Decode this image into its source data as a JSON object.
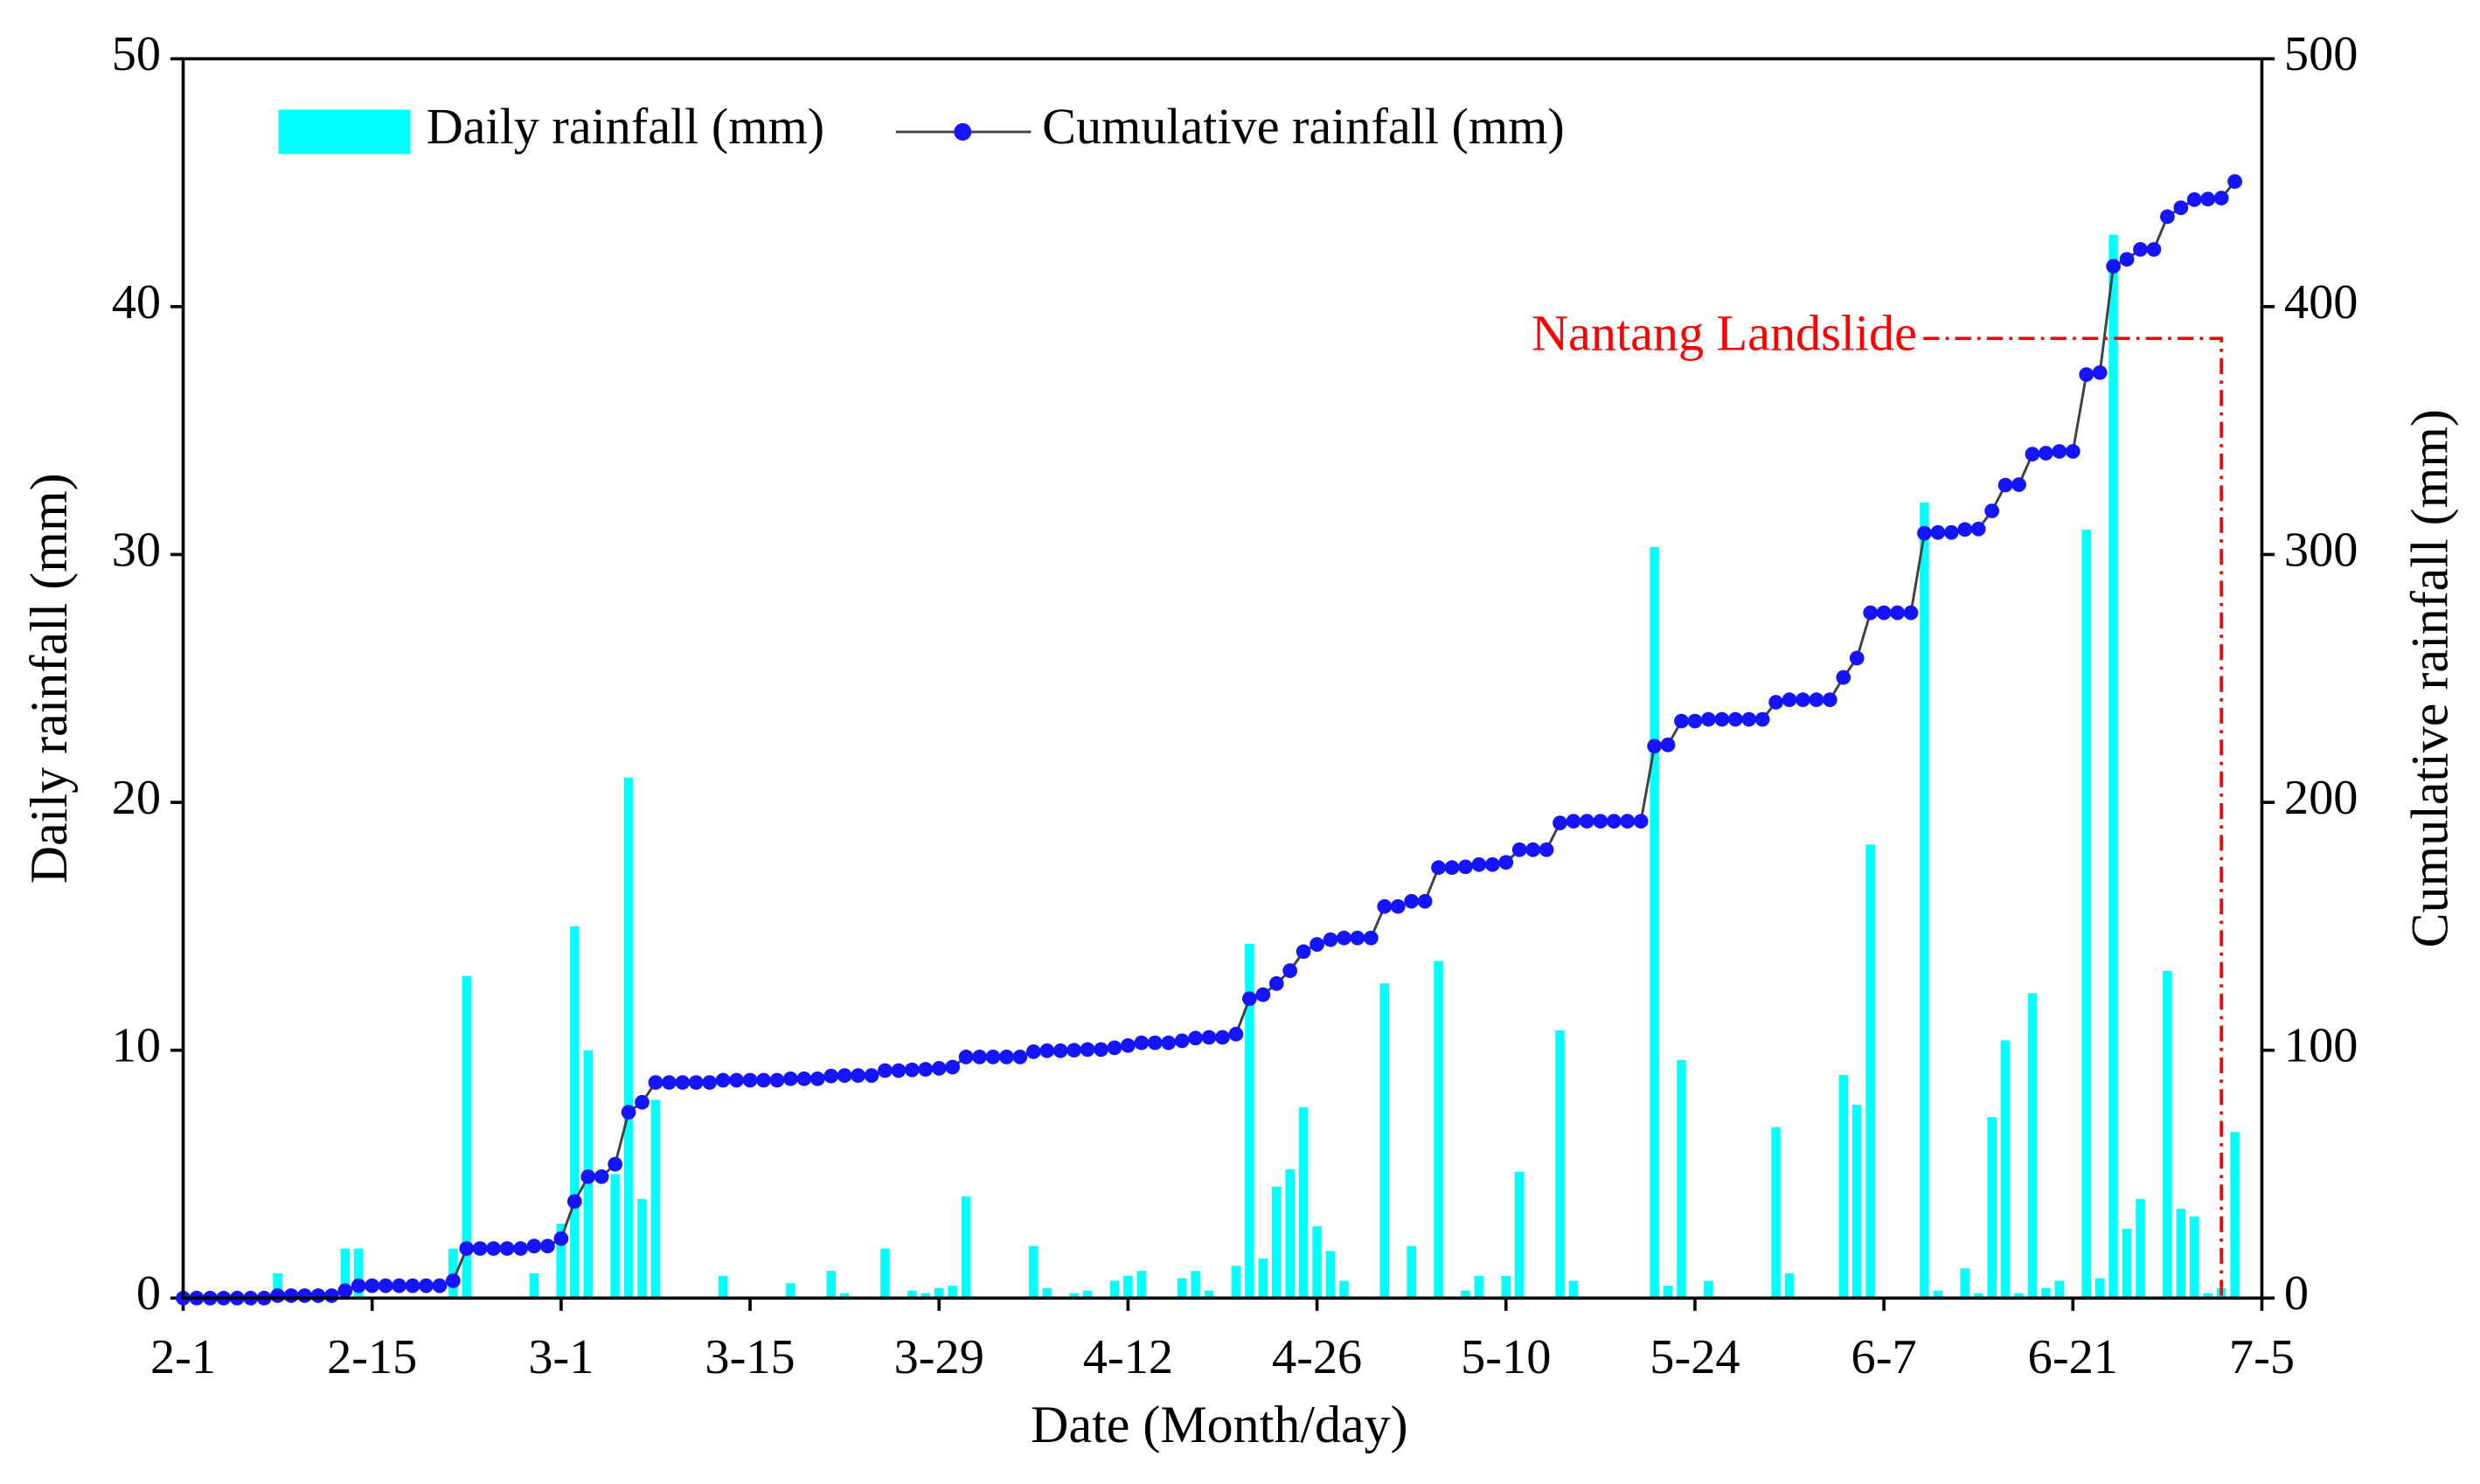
{
  "chart_data": {
    "type": "bar",
    "xlabel": "Date (Month/day)",
    "ylabel": "Daily rainfall (mm)",
    "y2label": "Cumulative rainfall (mm)",
    "legend": "upper left",
    "x": [
      "2-1",
      "2-2",
      "2-3",
      "2-4",
      "2-5",
      "2-6",
      "2-7",
      "2-8",
      "2-9",
      "2-10",
      "2-11",
      "2-12",
      "2-13",
      "2-14",
      "2-15",
      "2-16",
      "2-17",
      "2-18",
      "2-19",
      "2-20",
      "2-21",
      "2-22",
      "2-23",
      "2-24",
      "2-25",
      "2-26",
      "2-27",
      "2-28",
      "3-1",
      "3-2",
      "3-3",
      "3-4",
      "3-5",
      "3-6",
      "3-7",
      "3-8",
      "3-9",
      "3-10",
      "3-11",
      "3-12",
      "3-13",
      "3-14",
      "3-15",
      "3-16",
      "3-17",
      "3-18",
      "3-19",
      "3-20",
      "3-21",
      "3-22",
      "3-23",
      "3-24",
      "3-25",
      "3-26",
      "3-27",
      "3-28",
      "3-29",
      "3-30",
      "3-31",
      "4-1",
      "4-2",
      "4-3",
      "4-4",
      "4-5",
      "4-6",
      "4-7",
      "4-8",
      "4-9",
      "4-10",
      "4-11",
      "4-12",
      "4-13",
      "4-14",
      "4-15",
      "4-16",
      "4-17",
      "4-18",
      "4-19",
      "4-20",
      "4-21",
      "4-22",
      "4-23",
      "4-24",
      "4-25",
      "4-26",
      "4-27",
      "4-28",
      "4-29",
      "4-30",
      "5-1",
      "5-2",
      "5-3",
      "5-4",
      "5-5",
      "5-6",
      "5-7",
      "5-8",
      "5-9",
      "5-10",
      "5-11",
      "5-12",
      "5-13",
      "5-14",
      "5-15",
      "5-16",
      "5-17",
      "5-18",
      "5-19",
      "5-20",
      "5-21",
      "5-22",
      "5-23",
      "5-24",
      "5-25",
      "5-26",
      "5-27",
      "5-28",
      "5-29",
      "5-30",
      "5-31",
      "6-1",
      "6-2",
      "6-3",
      "6-4",
      "6-5",
      "6-6",
      "6-7",
      "6-8",
      "6-9",
      "6-10",
      "6-11",
      "6-12",
      "6-13",
      "6-14",
      "6-15",
      "6-16",
      "6-17",
      "6-18",
      "6-19",
      "6-20",
      "6-21",
      "6-22",
      "6-23",
      "6-24",
      "6-25",
      "6-26",
      "6-27",
      "6-28",
      "6-29",
      "6-30",
      "7-1",
      "7-2",
      "7-3"
    ],
    "series": [
      {
        "name": "Daily rainfall (mm)",
        "type": "bar",
        "color": "#00ffff",
        "values": [
          0,
          0,
          0,
          0,
          0,
          0,
          0,
          1,
          0,
          0,
          0,
          0,
          2,
          2,
          0,
          0,
          0,
          0,
          0,
          0,
          2,
          13,
          0,
          0,
          0,
          0,
          1,
          0,
          3,
          15,
          10,
          0,
          5,
          21,
          4,
          8,
          0,
          0,
          0,
          0,
          0.9,
          0,
          0,
          0,
          0,
          0.6,
          0,
          0,
          1.1,
          0.2,
          0,
          0,
          2,
          0,
          0.3,
          0.2,
          0.4,
          0.5,
          4.1,
          0,
          0,
          0,
          0,
          2.1,
          0.4,
          0,
          0.2,
          0.3,
          0,
          0.7,
          0.9,
          1.1,
          0,
          0,
          0.8,
          1.1,
          0.3,
          0,
          1.3,
          14.3,
          1.6,
          4.5,
          5.2,
          7.7,
          2.9,
          1.9,
          0.7,
          0,
          0,
          12.7,
          0,
          2.1,
          0,
          13.6,
          0,
          0.3,
          0.9,
          0,
          0.9,
          5.1,
          0,
          0,
          10.8,
          0.7,
          0,
          0,
          0,
          0,
          0,
          30.3,
          0.5,
          9.6,
          0,
          0.7,
          0,
          0,
          0,
          0,
          6.9,
          1,
          0,
          0,
          0,
          9,
          7.8,
          18.3,
          0,
          0,
          0,
          32.1,
          0.3,
          0,
          1.2,
          0.2,
          7.3,
          10.4,
          0.2,
          12.3,
          0.4,
          0.7,
          0,
          31,
          0.8,
          42.9,
          2.8,
          4,
          0,
          13.2,
          3.6,
          3.3,
          0.2,
          0.4,
          6.7
        ]
      },
      {
        "name": "Cumulative rainfall (mm)",
        "type": "line",
        "axis": "y2",
        "color": "#1414ff",
        "line_color": "#404040",
        "values": [
          0,
          0,
          0,
          0,
          0,
          0,
          0,
          1,
          1,
          1,
          1,
          1,
          3,
          5,
          5,
          5,
          5,
          5,
          5,
          5,
          7,
          20,
          20,
          20,
          20,
          20,
          21,
          21,
          24,
          39,
          49,
          49,
          54,
          75,
          79,
          87,
          87,
          87,
          87,
          87,
          87.9,
          87.9,
          87.9,
          87.9,
          87.9,
          88.5,
          88.5,
          88.5,
          89.6,
          89.8,
          89.8,
          89.8,
          91.8,
          91.8,
          92.1,
          92.3,
          92.7,
          93.2,
          97.3,
          97.3,
          97.3,
          97.3,
          97.3,
          99.4,
          99.8,
          99.8,
          100,
          100.3,
          100.3,
          101,
          101.9,
          103,
          103,
          103,
          103.8,
          104.9,
          105.2,
          105.2,
          106.5,
          120.8,
          122.4,
          126.9,
          132.1,
          139.8,
          142.7,
          144.6,
          145.3,
          145.3,
          145.3,
          158,
          158,
          160.1,
          160.1,
          173.7,
          173.7,
          174,
          174.9,
          174.9,
          175.8,
          180.9,
          180.9,
          180.9,
          191.7,
          192.4,
          192.4,
          192.4,
          192.4,
          192.4,
          192.4,
          222.7,
          223.2,
          232.8,
          232.8,
          233.5,
          233.5,
          233.5,
          233.5,
          233.5,
          240.4,
          241.4,
          241.4,
          241.4,
          241.4,
          250.4,
          258.2,
          276.5,
          276.5,
          276.5,
          276.5,
          308.6,
          308.9,
          308.9,
          310.1,
          310.3,
          317.6,
          328,
          328.2,
          340.5,
          340.9,
          341.6,
          341.6,
          372.6,
          373.4,
          416.3,
          419.1,
          423.1,
          423.1,
          436.3,
          439.9,
          443.2,
          443.4,
          443.8,
          450.5
        ]
      }
    ],
    "xlim": [
      "2-1",
      "7-5"
    ],
    "xticks": [
      "2-1",
      "2-15",
      "3-1",
      "3-15",
      "3-29",
      "4-12",
      "4-26",
      "5-10",
      "5-24",
      "6-7",
      "6-21",
      "7-5"
    ],
    "ylim": [
      0,
      50
    ],
    "yticks": [
      0,
      10,
      20,
      30,
      40,
      50
    ],
    "y2lim": [
      0,
      500
    ],
    "y2ticks": [
      0,
      100,
      200,
      300,
      400,
      500
    ],
    "annotation": {
      "text": "Nantang Landslide",
      "x": "7-2",
      "color": "#ff0000"
    }
  }
}
